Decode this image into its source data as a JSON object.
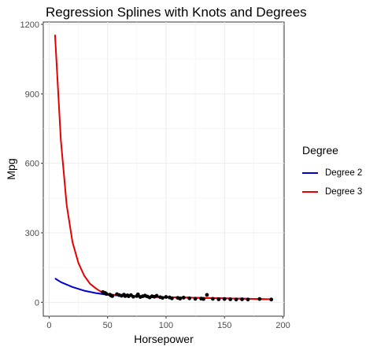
{
  "chart_data": {
    "type": "line",
    "title": "Regression Splines with Knots and Degrees",
    "xlabel": "Horsepower",
    "ylabel": "Mpg",
    "xlim": [
      -5,
      201
    ],
    "ylim": [
      -60,
      1210
    ],
    "xticks": [
      0,
      50,
      100,
      150,
      200
    ],
    "yticks": [
      0,
      300,
      600,
      900,
      1200
    ],
    "grid": true,
    "legend": {
      "title": "Degree",
      "position": "right"
    },
    "series": [
      {
        "name": "Degree 2",
        "color": "#0000cc",
        "x": [
          5,
          10,
          20,
          30,
          40,
          46,
          50,
          60,
          70,
          80,
          90,
          100,
          110,
          120,
          130,
          140,
          150,
          160,
          170,
          180,
          190
        ],
        "y": [
          103,
          87,
          66,
          50,
          40,
          35,
          32,
          29,
          27,
          25,
          23,
          22,
          21,
          20,
          19,
          18,
          17,
          16,
          15,
          14,
          13
        ]
      },
      {
        "name": "Degree 3",
        "color": "#e60000",
        "x": [
          5,
          10,
          15,
          20,
          25,
          30,
          35,
          40,
          46,
          50,
          60,
          70,
          80,
          90,
          100,
          110,
          120,
          130,
          140,
          150,
          160,
          170,
          180,
          190
        ],
        "y": [
          1155,
          700,
          420,
          260,
          170,
          115,
          80,
          60,
          40,
          35,
          30,
          27,
          25,
          23,
          22,
          21,
          20,
          19,
          18,
          17,
          16,
          15,
          14,
          13
        ]
      }
    ],
    "points": [
      {
        "x": 46,
        "y": 44
      },
      {
        "x": 48,
        "y": 40
      },
      {
        "x": 49,
        "y": 36
      },
      {
        "x": 52,
        "y": 33
      },
      {
        "x": 53,
        "y": 29
      },
      {
        "x": 54,
        "y": 27
      },
      {
        "x": 58,
        "y": 35
      },
      {
        "x": 60,
        "y": 31
      },
      {
        "x": 62,
        "y": 28
      },
      {
        "x": 64,
        "y": 33
      },
      {
        "x": 65,
        "y": 27
      },
      {
        "x": 67,
        "y": 30
      },
      {
        "x": 68,
        "y": 26
      },
      {
        "x": 70,
        "y": 31
      },
      {
        "x": 72,
        "y": 24
      },
      {
        "x": 75,
        "y": 27
      },
      {
        "x": 76,
        "y": 34
      },
      {
        "x": 78,
        "y": 23
      },
      {
        "x": 80,
        "y": 26
      },
      {
        "x": 82,
        "y": 29
      },
      {
        "x": 84,
        "y": 25
      },
      {
        "x": 86,
        "y": 21
      },
      {
        "x": 88,
        "y": 26
      },
      {
        "x": 90,
        "y": 24
      },
      {
        "x": 92,
        "y": 28
      },
      {
        "x": 95,
        "y": 22
      },
      {
        "x": 97,
        "y": 19
      },
      {
        "x": 100,
        "y": 23
      },
      {
        "x": 103,
        "y": 21
      },
      {
        "x": 105,
        "y": 17
      },
      {
        "x": 110,
        "y": 19
      },
      {
        "x": 112,
        "y": 16
      },
      {
        "x": 115,
        "y": 20
      },
      {
        "x": 120,
        "y": 17
      },
      {
        "x": 125,
        "y": 15
      },
      {
        "x": 130,
        "y": 16
      },
      {
        "x": 132,
        "y": 14
      },
      {
        "x": 135,
        "y": 32
      },
      {
        "x": 140,
        "y": 15
      },
      {
        "x": 145,
        "y": 13
      },
      {
        "x": 150,
        "y": 14
      },
      {
        "x": 155,
        "y": 13
      },
      {
        "x": 160,
        "y": 12
      },
      {
        "x": 165,
        "y": 13
      },
      {
        "x": 170,
        "y": 12
      },
      {
        "x": 180,
        "y": 14
      },
      {
        "x": 190,
        "y": 12
      }
    ]
  }
}
